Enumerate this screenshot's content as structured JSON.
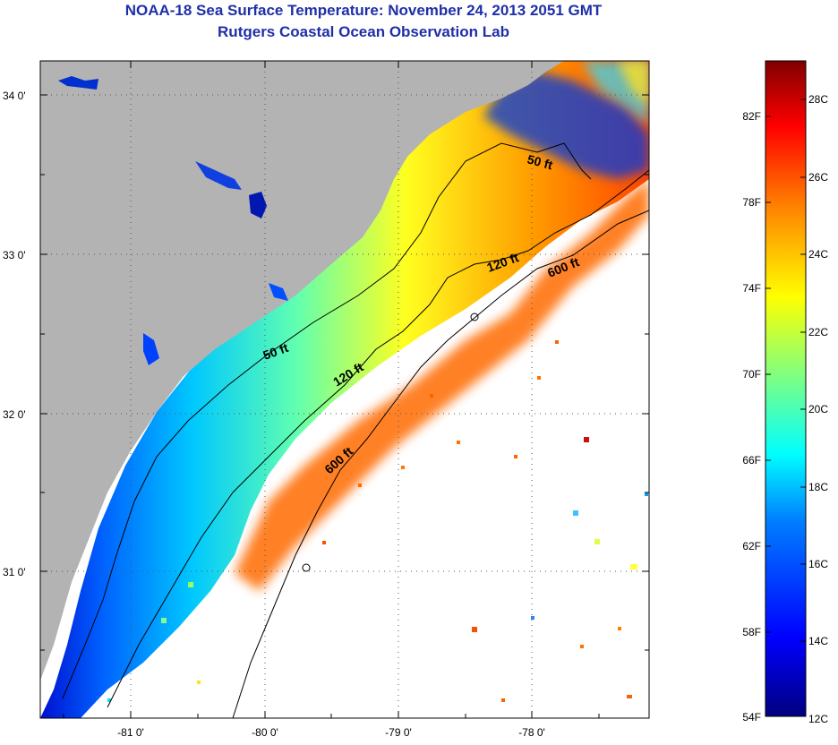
{
  "header": {
    "title": "NOAA-18 Sea Surface Temperature:  November 24, 2013 2051 GMT",
    "subtitle": "Rutgers Coastal Ocean Observation Lab"
  },
  "map": {
    "lat_labels": [
      "34 0'",
      "33 0'",
      "32 0'",
      "31 0'"
    ],
    "lon_labels": [
      "-81 0'",
      "-80 0'",
      "-79 0'",
      "-78 0'"
    ],
    "isobaths": [
      {
        "label": "50 ft",
        "depth": 50
      },
      {
        "label": "50 ft",
        "depth": 50
      },
      {
        "label": "120 ft",
        "depth": 120
      },
      {
        "label": "120 ft",
        "depth": 120
      },
      {
        "label": "600 ft",
        "depth": 600
      },
      {
        "label": "600 ft",
        "depth": 600
      }
    ],
    "colors": {
      "land": "#b3b3b3",
      "no_data": "#ffffff",
      "contour": "#000000",
      "grid": "#555555"
    }
  },
  "colorbar": {
    "fahrenheit_labels": [
      "82F",
      "78F",
      "74F",
      "70F",
      "66F",
      "62F",
      "58F",
      "54F"
    ],
    "celsius_labels": [
      "28C",
      "26C",
      "24C",
      "22C",
      "20C",
      "18C",
      "16C",
      "14C",
      "12C"
    ],
    "range_celsius": [
      12,
      29
    ],
    "colors": [
      "#000080",
      "#0000ff",
      "#0080ff",
      "#00ffff",
      "#80ff80",
      "#ffff00",
      "#ff8000",
      "#ff0000",
      "#800000"
    ]
  }
}
